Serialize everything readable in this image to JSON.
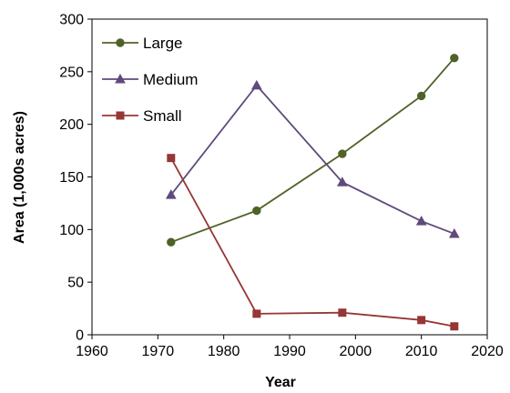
{
  "chart_data": {
    "type": "line",
    "xlabel": "Year",
    "ylabel": "Area (1,000s acres)",
    "xlim": [
      1960,
      2020
    ],
    "ylim": [
      0,
      300
    ],
    "xticks": [
      1960,
      1970,
      1980,
      1990,
      2000,
      2010,
      2020
    ],
    "yticks": [
      0,
      50,
      100,
      150,
      200,
      250,
      300
    ],
    "grid": false,
    "legend_position": "top-left",
    "series": [
      {
        "name": "Large",
        "color": "#4f6228",
        "marker": "circle",
        "x": [
          1972,
          1985,
          1998,
          2010,
          2015
        ],
        "y": [
          88,
          118,
          172,
          227,
          263
        ]
      },
      {
        "name": "Medium",
        "color": "#604a7b",
        "marker": "triangle",
        "x": [
          1972,
          1985,
          1998,
          2010,
          2015
        ],
        "y": [
          133,
          237,
          145,
          108,
          96
        ]
      },
      {
        "name": "Small",
        "color": "#953735",
        "marker": "square",
        "x": [
          1972,
          1985,
          1998,
          2010,
          2015
        ],
        "y": [
          168,
          20,
          21,
          14,
          8
        ]
      }
    ]
  }
}
